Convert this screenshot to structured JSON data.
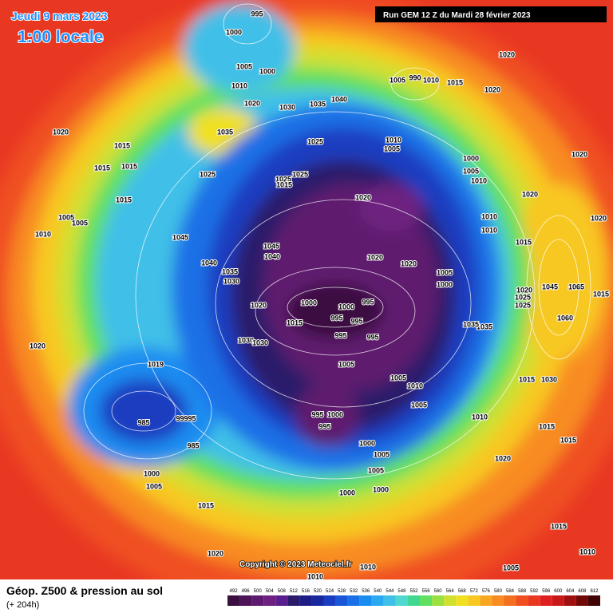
{
  "header": {
    "date": "Jeudi 9 mars 2023",
    "time": "1:00 locale",
    "run": "Run GEM 12 Z du Mardi 28 février 2023"
  },
  "copyright": "Copyright © 2023 Meteociel.fr",
  "footer": {
    "title": "Géop. Z500 & pression au sol",
    "lead": "(+ 204h)"
  },
  "legend": {
    "values": [
      492,
      496,
      500,
      504,
      508,
      512,
      516,
      520,
      524,
      528,
      532,
      536,
      540,
      544,
      548,
      552,
      556,
      560,
      564,
      568,
      572,
      576,
      580,
      584,
      588,
      592,
      596,
      600,
      604,
      608,
      612
    ],
    "colors": [
      "#3a1040",
      "#4c1456",
      "#5e1a6e",
      "#6e2080",
      "#5a1f8e",
      "#2a1a6a",
      "#1c1c84",
      "#1a28a0",
      "#1a3cc0",
      "#1a56d8",
      "#1a70e6",
      "#1a8cf0",
      "#2aa8f0",
      "#40c0e8",
      "#50d8d0",
      "#40d890",
      "#60e060",
      "#9ae040",
      "#d0e030",
      "#f0e020",
      "#f8c820",
      "#f8a820",
      "#f88c20",
      "#f47020",
      "#f05020",
      "#e83820",
      "#e02020",
      "#c81818",
      "#a01010",
      "#700808",
      "#400404"
    ]
  },
  "isobar_labels": [
    "995",
    "1000",
    "1005",
    "1000",
    "1010",
    "1020",
    "1030",
    "1035",
    "1040",
    "1035",
    "1025",
    "1020",
    "1015",
    "1015",
    "1015",
    "1025",
    "1025",
    "1025",
    "1015",
    "1015",
    "1005",
    "1005",
    "1010",
    "1045",
    "1045",
    "1040",
    "1040",
    "1035",
    "1030",
    "1020",
    "1000",
    "1000",
    "995",
    "995",
    "995",
    "1015",
    "995",
    "995",
    "1030",
    "1030",
    "1020",
    "1019",
    "1005",
    "1005",
    "1010",
    "1005",
    "985",
    "99995",
    "995",
    "1000",
    "995",
    "1000",
    "1005",
    "985",
    "1000",
    "1005",
    "1005",
    "1000",
    "1000",
    "1015",
    "1020",
    "1010",
    "1010",
    "1005",
    "1010",
    "1015",
    "1015",
    "1015",
    "1020",
    "1010",
    "1030",
    "1015",
    "1060",
    "1025",
    "1020",
    "1025",
    "1045",
    "1065",
    "1015",
    "1020",
    "1020",
    "1020",
    "1015",
    "1010",
    "1010",
    "1010",
    "1005",
    "1000",
    "1005",
    "1000",
    "1020",
    "1020",
    "1020",
    "1010",
    "1005",
    "1005",
    "990",
    "1010",
    "1015",
    "1020",
    "1020",
    "1035",
    "1035"
  ]
}
